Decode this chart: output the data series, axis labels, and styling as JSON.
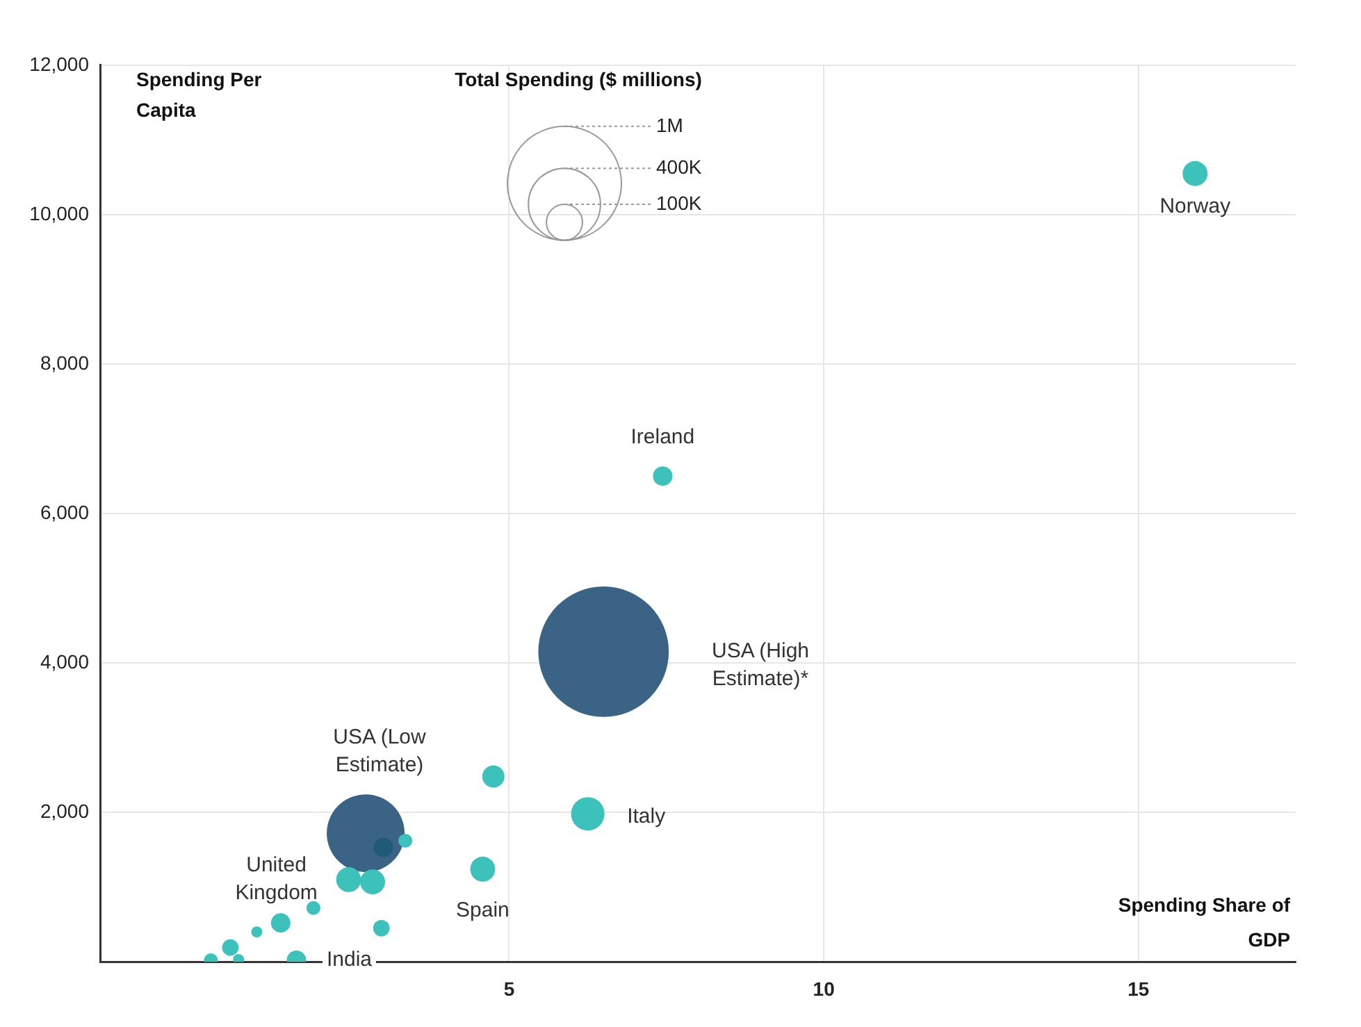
{
  "chart_data": {
    "type": "bubble",
    "xlabel": "Spending Share of\nGDP",
    "ylabel": "Spending Per\nCapita",
    "legend_title": "Total Spending ($ millions)",
    "xlim": [
      -1.5,
      17.5
    ],
    "xticks": [
      5,
      10,
      15
    ],
    "ylim": [
      0,
      12000
    ],
    "yticks": [
      {
        "value": 2000,
        "label": "2,000"
      },
      {
        "value": 4000,
        "label": "4,000"
      },
      {
        "value": 6000,
        "label": "6,000"
      },
      {
        "value": 8000,
        "label": "8,000"
      },
      {
        "value": 10000,
        "label": "10,000"
      },
      {
        "value": 12000,
        "label": "12,000"
      }
    ],
    "grid": true,
    "size_legend": [
      {
        "value": 1000000,
        "label": "1M"
      },
      {
        "value": 400000,
        "label": "400K"
      },
      {
        "value": 100000,
        "label": "100K"
      }
    ],
    "series": [
      {
        "color": "#3b6386",
        "x": [
          6.5,
          2.72
        ],
        "values": [
          4150,
          1720
        ],
        "sizes": [
          1310000,
          466000
        ]
      },
      {
        "color": "#3cc1bb",
        "x": [
          15.9,
          7.44,
          6.25,
          4.58,
          4.75,
          3.35,
          2.45,
          2.83,
          1.89,
          1.37,
          0.99,
          2.97,
          0.57,
          0.7,
          0.26,
          1.62
        ],
        "values": [
          10550,
          6500,
          1980,
          1240,
          2480,
          1620,
          1100,
          1070,
          720,
          520,
          400,
          450,
          190,
          30,
          20,
          20
        ],
        "sizes": [
          48000,
          29000,
          86000,
          48000,
          38000,
          15000,
          48000,
          48000,
          15000,
          29000,
          9500,
          21000,
          21000,
          9500,
          15000,
          29000
        ]
      },
      {
        "color": "#1f5a76",
        "x": [
          3.0
        ],
        "values": [
          1530
        ],
        "sizes": [
          29000
        ]
      }
    ],
    "annotations": [
      {
        "text": "Norway",
        "x": 15.9,
        "y": 10550
      },
      {
        "text": "Ireland",
        "x": 7.44,
        "y": 6500
      },
      "USA (High\nEstimate)*",
      "USA (Low\nEstimate)",
      {
        "text": "Italy",
        "x": 6.25,
        "y": 1980
      },
      {
        "text": "Spain",
        "x": 4.58,
        "y": 1240
      },
      {
        "text": "United\nKingdom",
        "x": 2.45,
        "y": 1100
      },
      {
        "text": "India",
        "x": 1.62,
        "y": 20
      }
    ]
  }
}
